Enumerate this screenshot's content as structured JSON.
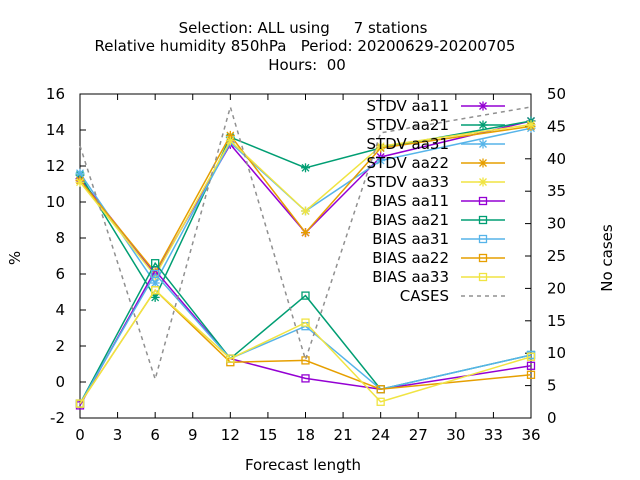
{
  "title_lines": [
    "Selection: ALL using     7 stations",
    "Relative humidity 850hPa   Period: 20200629-20200705",
    "Hours:  00"
  ],
  "chart_data": {
    "type": "line",
    "xlabel": "Forecast length",
    "ylabel": "%",
    "y2label": "No cases",
    "xlim": [
      0,
      36
    ],
    "ylim": [
      -2,
      16
    ],
    "y2lim": [
      0,
      50
    ],
    "xticks": [
      0,
      3,
      6,
      9,
      12,
      15,
      18,
      21,
      24,
      27,
      30,
      33,
      36
    ],
    "yticks": [
      -2,
      0,
      2,
      4,
      6,
      8,
      10,
      12,
      14,
      16
    ],
    "y2ticks": [
      0,
      5,
      10,
      15,
      20,
      25,
      30,
      35,
      40,
      45,
      50
    ],
    "grid": false,
    "legend_position": "top-right",
    "x": [
      0,
      6,
      12,
      18,
      24,
      36
    ],
    "series": [
      {
        "name": "STDV aa11",
        "color": "#9400d3",
        "marker": "x",
        "values": [
          11.3,
          6.0,
          13.2,
          8.3,
          12.5,
          14.5
        ]
      },
      {
        "name": "STDV aa21",
        "color": "#009e73",
        "marker": "x",
        "values": [
          11.5,
          4.7,
          13.6,
          11.9,
          13.0,
          14.5
        ]
      },
      {
        "name": "STDV aa31",
        "color": "#56b4e9",
        "marker": "x",
        "values": [
          11.6,
          5.5,
          13.3,
          9.5,
          12.3,
          14.1
        ]
      },
      {
        "name": "STDV aa22",
        "color": "#e69f00",
        "marker": "x",
        "values": [
          11.2,
          6.1,
          13.7,
          8.3,
          13.0,
          14.2
        ]
      },
      {
        "name": "STDV aa33",
        "color": "#f0e442",
        "marker": "x",
        "values": [
          11.1,
          5.9,
          13.4,
          9.5,
          13.1,
          14.3
        ]
      },
      {
        "name": "BIAS aa11",
        "color": "#9400d3",
        "marker": "square",
        "values": [
          -1.3,
          6.2,
          1.3,
          0.2,
          -0.4,
          0.9
        ]
      },
      {
        "name": "BIAS aa21",
        "color": "#009e73",
        "marker": "square",
        "values": [
          -1.2,
          6.6,
          1.3,
          4.8,
          -0.4,
          1.5
        ]
      },
      {
        "name": "BIAS aa31",
        "color": "#56b4e9",
        "marker": "square",
        "values": [
          -1.2,
          6.0,
          1.3,
          3.1,
          -0.4,
          1.5
        ]
      },
      {
        "name": "BIAS aa22",
        "color": "#e69f00",
        "marker": "square",
        "values": [
          -1.2,
          5.1,
          1.1,
          1.2,
          -0.4,
          0.4
        ]
      },
      {
        "name": "BIAS aa33",
        "color": "#f0e442",
        "marker": "square",
        "values": [
          -1.2,
          5.1,
          1.3,
          3.3,
          -1.1,
          1.4
        ]
      },
      {
        "name": "CASES",
        "color": "#909090",
        "marker": "none",
        "dashed": true,
        "axis": "y2",
        "values": [
          42,
          6,
          48,
          9,
          44,
          48
        ]
      }
    ]
  }
}
